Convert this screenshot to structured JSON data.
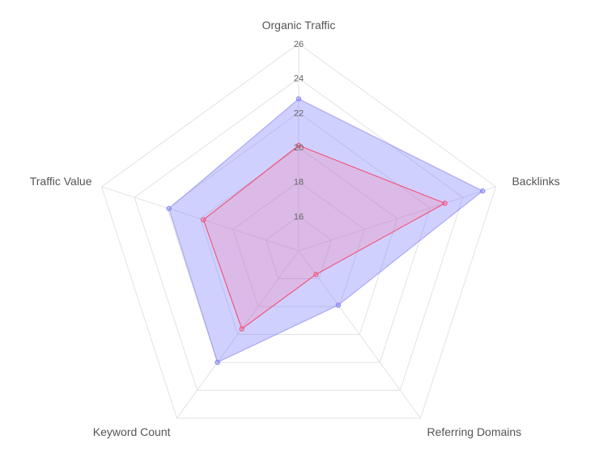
{
  "chart_data": {
    "type": "radar",
    "axes": [
      "Organic Traffic",
      "Backlinks",
      "Referring Domains",
      "Keyword Count",
      "Traffic Value"
    ],
    "r_min": 14,
    "r_max": 26,
    "ticks": [
      16,
      18,
      20,
      22,
      24,
      26
    ],
    "tick_labels": [
      "16",
      "18",
      "20",
      "22",
      "24",
      "26"
    ],
    "grid": true,
    "legend": "none",
    "series": [
      {
        "values": [
          22.8,
          25.2,
          17.9,
          22.0,
          21.9
        ],
        "color": "#8c8cf2",
        "fill": "rgba(120, 120, 255, 0.35)",
        "stroke": "rgba(130, 130, 240, 0.6)"
      },
      {
        "values": [
          20.1,
          22.9,
          15.7,
          19.6,
          19.8
        ],
        "color": "#f0577a",
        "fill": "rgba(255, 120, 160, 0.25)",
        "stroke": "#f0577a"
      }
    ]
  }
}
